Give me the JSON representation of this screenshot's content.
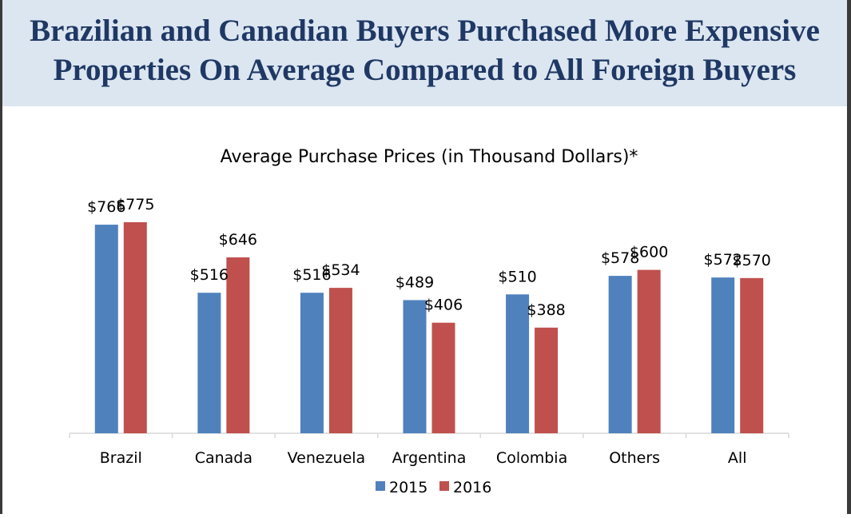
{
  "header": {
    "title_line1": "Brazilian and Canadian Buyers Purchased More Expensive",
    "title_line2": "Properties On Average Compared to All Foreign Buyers"
  },
  "colors": {
    "header_bg": "#dce6f1",
    "title": "#1f3864",
    "series_2015": "#4f81bd",
    "series_2016": "#c0504d"
  },
  "chart_data": {
    "type": "bar",
    "title": "Average Purchase Prices (in Thousand Dollars)*",
    "categories": [
      "Brazil",
      "Canada",
      "Venezuela",
      "Argentina",
      "Colombia",
      "Others",
      "All"
    ],
    "series": [
      {
        "name": "2015",
        "values": [
          766,
          516,
          516,
          489,
          510,
          578,
          572
        ],
        "labels": [
          "$766",
          "$516",
          "$516",
          "$489",
          "$510",
          "$578",
          "$572"
        ]
      },
      {
        "name": "2016",
        "values": [
          775,
          646,
          534,
          406,
          388,
          600,
          570
        ],
        "labels": [
          "$775",
          "$646",
          "$534",
          "$406",
          "$388",
          "$600",
          "$570"
        ]
      }
    ],
    "xlabel": "",
    "ylabel": "",
    "ylim": [
      0,
      900
    ],
    "grid": false,
    "legend": "bottom"
  }
}
